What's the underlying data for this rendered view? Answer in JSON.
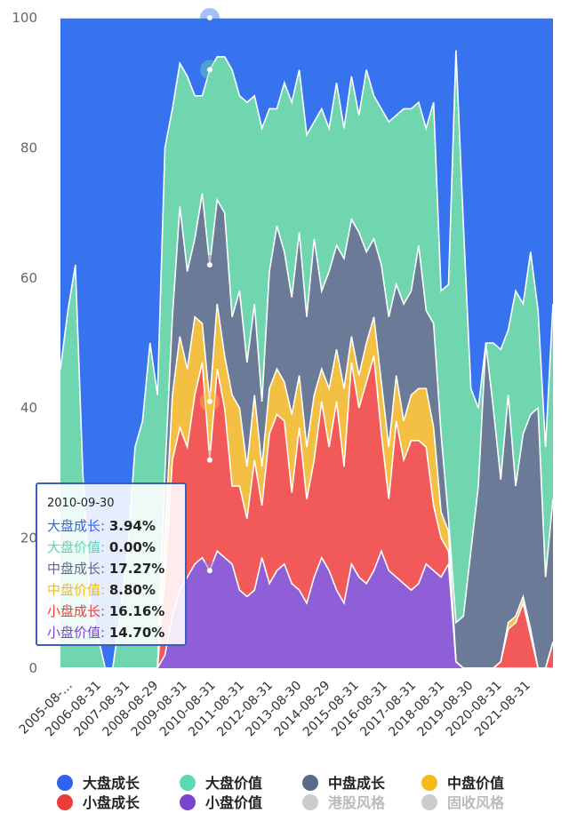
{
  "chart_data": {
    "type": "area",
    "stacked": true,
    "ylim": [
      0,
      100
    ],
    "yticks": [
      0,
      20,
      40,
      60,
      80,
      100
    ],
    "xtick_labels": [
      "2005-08-…",
      "2006-08-31",
      "2007-08-31",
      "2008-08-29",
      "2009-08-31",
      "2010-08-31",
      "2011-08-31",
      "2012-08-31",
      "2013-08-30",
      "2014-08-29",
      "2015-08-31",
      "2016-08-31",
      "2017-08-31",
      "2018-08-31",
      "2019-08-30",
      "2020-08-31",
      "2021-08-31"
    ],
    "x": [
      "2005-08",
      "2005-11",
      "2006-02",
      "2006-05",
      "2006-08",
      "2006-11",
      "2007-02",
      "2007-05",
      "2007-08",
      "2007-11",
      "2008-02",
      "2008-05",
      "2008-08",
      "2008-11",
      "2009-02",
      "2009-05",
      "2009-08",
      "2009-11",
      "2010-02",
      "2010-05",
      "2010-08",
      "2010-11",
      "2011-02",
      "2011-05",
      "2011-08",
      "2011-11",
      "2012-02",
      "2012-05",
      "2012-08",
      "2012-11",
      "2013-02",
      "2013-05",
      "2013-08",
      "2013-11",
      "2014-02",
      "2014-05",
      "2014-08",
      "2014-11",
      "2015-02",
      "2015-05",
      "2015-08",
      "2015-11",
      "2016-02",
      "2016-05",
      "2016-08",
      "2016-11",
      "2017-02",
      "2017-05",
      "2017-08",
      "2017-11",
      "2018-02",
      "2018-05",
      "2018-08",
      "2018-11",
      "2019-02",
      "2019-05",
      "2019-08",
      "2019-11",
      "2020-02",
      "2020-05",
      "2020-08",
      "2020-11",
      "2021-02",
      "2021-05",
      "2021-08",
      "2021-11",
      "2022-02"
    ],
    "series": [
      {
        "name": "小盘价值",
        "color": "#8e5fd6",
        "values": [
          0,
          0,
          0,
          0,
          0,
          0,
          0,
          0,
          0,
          0,
          0,
          0,
          0,
          0,
          2,
          8,
          12,
          14,
          16,
          17,
          15,
          18,
          17,
          16,
          12,
          11,
          12,
          17,
          13,
          15,
          16,
          13,
          12,
          10,
          14,
          17,
          15,
          12,
          10,
          16,
          14,
          13,
          15,
          18,
          15,
          14,
          13,
          12,
          13,
          16,
          15,
          14,
          16,
          1,
          0,
          0,
          0,
          0,
          0,
          0,
          0,
          0,
          0,
          0,
          0,
          0,
          0
        ]
      },
      {
        "name": "小盘成长",
        "color": "#f25a5a",
        "values": [
          0,
          0,
          0,
          0,
          0,
          0,
          0,
          0,
          0,
          0,
          0,
          0,
          0,
          0,
          12,
          24,
          25,
          20,
          26,
          30,
          17,
          28,
          23,
          12,
          16,
          12,
          20,
          8,
          23,
          24,
          22,
          14,
          25,
          16,
          18,
          24,
          19,
          29,
          21,
          31,
          26,
          31,
          33,
          18,
          11,
          24,
          19,
          23,
          22,
          18,
          10,
          6,
          2,
          0,
          0,
          0,
          0,
          0,
          0,
          1,
          6,
          7,
          10,
          5,
          0,
          0,
          4
        ]
      },
      {
        "name": "中盘价值",
        "color": "#f4c043",
        "values": [
          0,
          0,
          0,
          0,
          0,
          0,
          0,
          0,
          0,
          0,
          0,
          0,
          0,
          0,
          6,
          10,
          14,
          12,
          12,
          6,
          9,
          10,
          8,
          14,
          12,
          8,
          10,
          6,
          7,
          7,
          6,
          12,
          8,
          8,
          10,
          5,
          9,
          8,
          12,
          4,
          5,
          6,
          6,
          8,
          8,
          7,
          6,
          7,
          8,
          9,
          12,
          4,
          3,
          0,
          0,
          0,
          0,
          0,
          0,
          0,
          1,
          1,
          1,
          1,
          0,
          0,
          0
        ]
      },
      {
        "name": "中盘成长",
        "color": "#6b7a96",
        "values": [
          0,
          0,
          0,
          0,
          0,
          0,
          0,
          0,
          0,
          0,
          0,
          0,
          0,
          0,
          10,
          12,
          20,
          15,
          12,
          20,
          21,
          16,
          22,
          12,
          18,
          16,
          14,
          10,
          18,
          22,
          20,
          18,
          22,
          20,
          24,
          12,
          18,
          16,
          20,
          18,
          22,
          14,
          12,
          18,
          20,
          14,
          18,
          16,
          22,
          12,
          16,
          12,
          2,
          6,
          8,
          18,
          28,
          50,
          40,
          28,
          35,
          20,
          25,
          33,
          40,
          14,
          22
        ]
      },
      {
        "name": "大盘价值",
        "color": "#6fd6b0",
        "values": [
          46,
          55,
          62,
          30,
          10,
          5,
          0,
          0,
          8,
          18,
          34,
          38,
          50,
          42,
          50,
          32,
          22,
          30,
          22,
          15,
          30,
          22,
          24,
          38,
          30,
          40,
          32,
          42,
          25,
          18,
          26,
          30,
          25,
          28,
          18,
          28,
          22,
          25,
          20,
          22,
          18,
          28,
          22,
          24,
          30,
          26,
          30,
          28,
          22,
          28,
          34,
          22,
          36,
          88,
          60,
          25,
          12,
          0,
          10,
          20,
          10,
          30,
          20,
          25,
          15,
          20,
          30
        ]
      },
      {
        "name": "大盘成长",
        "color": "#3773ef",
        "values": [
          54,
          45,
          38,
          70,
          90,
          95,
          100,
          100,
          92,
          82,
          66,
          62,
          50,
          58,
          20,
          14,
          7,
          9,
          12,
          12,
          8,
          6,
          6,
          8,
          12,
          13,
          12,
          17,
          14,
          14,
          10,
          13,
          8,
          18,
          16,
          14,
          17,
          10,
          17,
          9,
          15,
          8,
          12,
          14,
          16,
          15,
          14,
          14,
          13,
          17,
          13,
          42,
          41,
          5,
          32,
          57,
          60,
          50,
          50,
          51,
          48,
          42,
          44,
          36,
          45,
          66,
          44
        ]
      }
    ],
    "legend": [
      {
        "name": "大盘成长",
        "color": "#2f62ee",
        "on": true
      },
      {
        "name": "大盘价值",
        "color": "#5dd8b4",
        "on": true
      },
      {
        "name": "中盘成长",
        "color": "#5c6a89",
        "on": true
      },
      {
        "name": "中盘价值",
        "color": "#f5bb1c",
        "on": true
      },
      {
        "name": "小盘成长",
        "color": "#f03b3b",
        "on": true
      },
      {
        "name": "小盘价值",
        "color": "#7a44d0",
        "on": true
      },
      {
        "name": "港股风格",
        "color": "#cccccc",
        "on": false
      },
      {
        "name": "固收风格",
        "color": "#cccccc",
        "on": false
      }
    ],
    "legend_position": "bottom",
    "grid": true,
    "highlight_x": "2010-08",
    "tooltip": {
      "date": "2010-09-30",
      "rows": [
        {
          "name": "大盘成长",
          "value": "3.94%",
          "color": "#2f62ee"
        },
        {
          "name": "大盘价值",
          "value": "0.00%",
          "color": "#5dd8b4"
        },
        {
          "name": "中盘成长",
          "value": "17.27%",
          "color": "#5c6a89"
        },
        {
          "name": "中盘价值",
          "value": "8.80%",
          "color": "#f5bb1c"
        },
        {
          "name": "小盘成长",
          "value": "16.16%",
          "color": "#f03b3b"
        },
        {
          "name": "小盘价值",
          "value": "14.70%",
          "color": "#7a44d0"
        }
      ]
    }
  }
}
